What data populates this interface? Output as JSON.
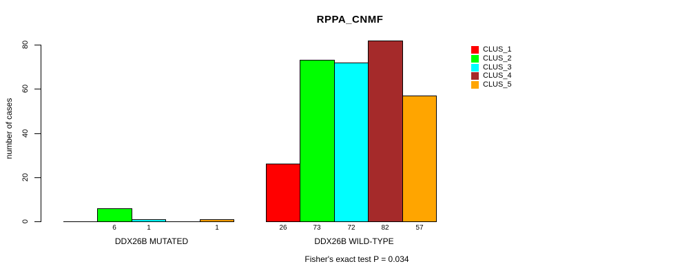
{
  "title": "RPPA_CNMF",
  "footer": "Fisher's exact test P = 0.034",
  "chart_data": {
    "type": "bar",
    "title": "RPPA_CNMF",
    "xlabel": "",
    "ylabel": "number of cases",
    "ylim": [
      0,
      82
    ],
    "yticks": [
      0,
      20,
      40,
      60,
      80
    ],
    "grid": false,
    "legend_position": "right",
    "categories": [
      "DDX26B MUTATED",
      "DDX26B WILD-TYPE"
    ],
    "series": [
      {
        "name": "CLUS_1",
        "color": "#FF0000",
        "values": [
          0,
          26
        ]
      },
      {
        "name": "CLUS_2",
        "color": "#00FF00",
        "values": [
          6,
          73
        ]
      },
      {
        "name": "CLUS_3",
        "color": "#00FFFF",
        "values": [
          1,
          72
        ]
      },
      {
        "name": "CLUS_4",
        "color": "#A52A2A",
        "values": [
          0,
          82
        ]
      },
      {
        "name": "CLUS_5",
        "color": "#FFA500",
        "values": [
          1,
          57
        ]
      }
    ],
    "bar_value_labels": {
      "DDX26B MUTATED": [
        "",
        "6",
        "1",
        "",
        "1"
      ],
      "DDX26B WILD-TYPE": [
        "26",
        "73",
        "72",
        "82",
        "57"
      ]
    },
    "annotation": "Fisher's exact test P = 0.034"
  }
}
